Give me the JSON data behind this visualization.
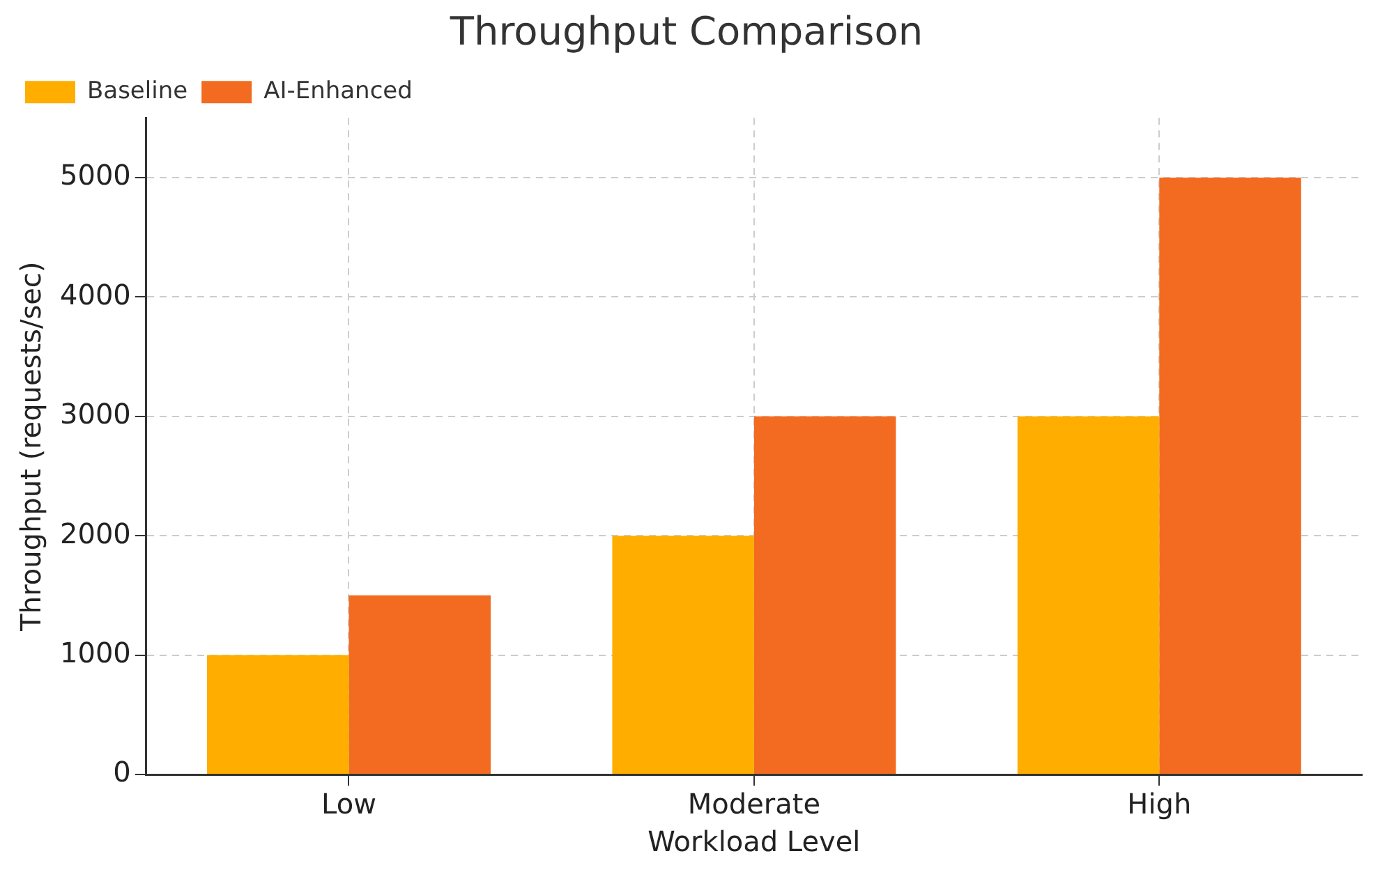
{
  "chart_data": {
    "type": "bar",
    "title": "Throughput Comparison",
    "xlabel": "Workload Level",
    "ylabel": "Throughput (requests/sec)",
    "categories": [
      "Low",
      "Moderate",
      "High"
    ],
    "series": [
      {
        "name": "Baseline",
        "color": "#ffae00",
        "values": [
          1000,
          2000,
          3000
        ]
      },
      {
        "name": "AI-Enhanced",
        "color": "#f26b21",
        "values": [
          1500,
          3000,
          5000
        ]
      }
    ],
    "ylim": [
      0,
      5500
    ],
    "yticks": [
      0,
      1000,
      2000,
      3000,
      4000,
      5000
    ],
    "grid": true,
    "legend": "top left"
  }
}
